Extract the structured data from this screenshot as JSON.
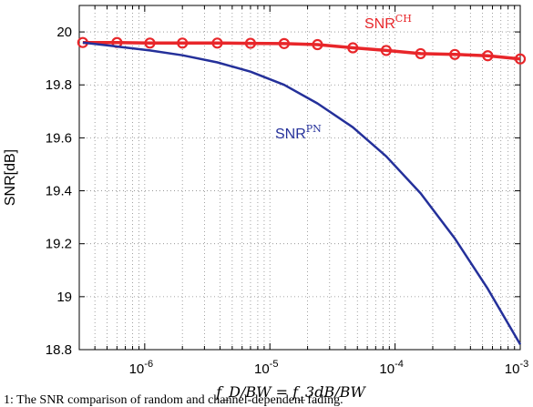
{
  "chart_data": {
    "type": "line",
    "xlabel": "f_D/BW = f_3dB/BW",
    "ylabel": "SNR[dB]",
    "xscale": "log",
    "xlim": [
      3e-07,
      0.001
    ],
    "ylim": [
      18.8,
      20.1
    ],
    "grid": true,
    "x_tick_labels": [
      {
        "value": 1e-06,
        "base": "10",
        "exp": "-6"
      },
      {
        "value": 1e-05,
        "base": "10",
        "exp": "-5"
      },
      {
        "value": 0.0001,
        "base": "10",
        "exp": "-4"
      },
      {
        "value": 0.001,
        "base": "10",
        "exp": "-3"
      }
    ],
    "y_ticks": [
      18.8,
      19,
      19.2,
      19.4,
      19.6,
      19.8,
      20
    ],
    "y_tick_labels": [
      "18.8",
      "19",
      "19.2",
      "19.4",
      "19.6",
      "19.8",
      "20"
    ],
    "series": [
      {
        "label_base": "SNR",
        "label_sup": "CH",
        "color": "#e8262a",
        "marker": "circle",
        "x": [
          3.2e-07,
          6e-07,
          1.1e-06,
          2e-06,
          3.8e-06,
          7e-06,
          1.3e-05,
          2.4e-05,
          4.6e-05,
          8.5e-05,
          0.00016,
          0.0003,
          0.00055,
          0.001
        ],
        "y": [
          19.96,
          19.96,
          19.958,
          19.958,
          19.958,
          19.957,
          19.956,
          19.952,
          19.94,
          19.93,
          19.918,
          19.915,
          19.91,
          19.898
        ]
      },
      {
        "label_base": "SNR",
        "label_sup": "PN",
        "color": "#24309a",
        "marker": "none",
        "x": [
          3.2e-07,
          6e-07,
          1.1e-06,
          2e-06,
          3.8e-06,
          7e-06,
          1.3e-05,
          2.4e-05,
          4.6e-05,
          8.5e-05,
          0.00016,
          0.0003,
          0.00055,
          0.001
        ],
        "y": [
          19.96,
          19.945,
          19.93,
          19.912,
          19.885,
          19.85,
          19.8,
          19.73,
          19.64,
          19.53,
          19.39,
          19.22,
          19.03,
          18.82
        ]
      }
    ],
    "caption": "1: The SNR comparison of random and channel-dependent fading."
  }
}
